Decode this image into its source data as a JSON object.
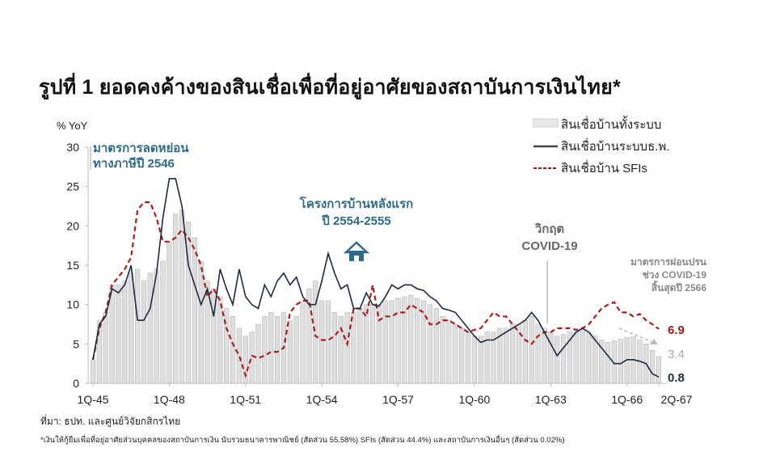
{
  "title": "รูปที่ 1 ยอดคงค้างของสินเชื่อเพื่อที่อยู่อาศัยของสถาบันการเงินไทย*",
  "source": "ที่มา: ธปท. และศูนย์วิจัยกสิกรไทย",
  "footnote": "*เงินให้กู้ยืมเพื่อที่อยู่อาศัยส่วนบุคคลของสถาบันการเงิน นับรวมธนาคารพาณิชย์ (สัดส่วน 55.58%) SFIs (สัดส่วน 44.4%) และสถาบันการเงินอื่นๆ (สัดส่วน 0.02%)",
  "chart_data": {
    "type": "bar+line",
    "ylabel": "% YoY",
    "ylim": [
      0,
      30
    ],
    "yticks": [
      "0",
      "5",
      "10",
      "15",
      "20",
      "25",
      "30"
    ],
    "xtick_labels": [
      "1Q-45",
      "1Q-48",
      "1Q-51",
      "1Q-54",
      "1Q-57",
      "1Q-60",
      "1Q-63",
      "1Q-66",
      "2Q-67"
    ],
    "x_start": "1Q-45",
    "x_end": "2Q-67",
    "legend_position": "top-right",
    "series": [
      {
        "name": "สินเชื่อบ้านทั้งระบบ",
        "kind": "bar",
        "color": "#dedede",
        "values": [
          3,
          8,
          9,
          12.5,
          12.5,
          13,
          14,
          14.5,
          13,
          14,
          14.5,
          15.5,
          18,
          21.5,
          22,
          20.5,
          18.5,
          15.5,
          13,
          12,
          11,
          9.5,
          8.5,
          7,
          6,
          6.5,
          7.5,
          8.5,
          9,
          8.5,
          9,
          8,
          8.5,
          10.5,
          12,
          13,
          10.5,
          10.5,
          9,
          8.5,
          9,
          9,
          9.5,
          10,
          10,
          10,
          10.5,
          10.5,
          10.8,
          11,
          11.2,
          10.8,
          10.5,
          10,
          9.5,
          8.5,
          8,
          7.5,
          7,
          6.5,
          6,
          6,
          6.5,
          6.5,
          7,
          7,
          7.5,
          7.5,
          8,
          8.5,
          7.5,
          7,
          6.5,
          6,
          6.2,
          6.5,
          6.8,
          6.8,
          6.5,
          6,
          5.5,
          5.2,
          5.4,
          5.6,
          5.8,
          5.9,
          5.5,
          5,
          4.2,
          3.4
        ]
      },
      {
        "name": "สินเชื่อบ้านระบบธ.พ.",
        "kind": "line",
        "color": "#1c2b40",
        "values": [
          3,
          7.5,
          8.5,
          12,
          11.5,
          12.5,
          15,
          8,
          8,
          9.5,
          14,
          21,
          26,
          26,
          22.5,
          15,
          12.5,
          10,
          12,
          8.5,
          14.5,
          12,
          10,
          14.5,
          11,
          10,
          9.5,
          12.5,
          11,
          13,
          14,
          12.5,
          13.5,
          11,
          10,
          10,
          13,
          16.5,
          14,
          12,
          12.5,
          9.5,
          9.5,
          11.5,
          10,
          9.8,
          11,
          12.5,
          12,
          12.5,
          12.5,
          12,
          11.8,
          11,
          10.5,
          9.5,
          9.3,
          9,
          8,
          7,
          6,
          5.2,
          5.5,
          5.5,
          6,
          6.5,
          7,
          7.5,
          8,
          9,
          8,
          6.5,
          5,
          3.5,
          4.5,
          5.5,
          6.5,
          7,
          6.5,
          5.5,
          4.5,
          3.5,
          2.5,
          2.5,
          3,
          3,
          2.8,
          2.5,
          1.2,
          0.8
        ]
      },
      {
        "name": "สินเชื่อบ้าน SFIs",
        "kind": "dashed-line",
        "color": "#b01c1c",
        "values": [
          3,
          7,
          9,
          12.5,
          13.5,
          14.5,
          16,
          22,
          23,
          23,
          21,
          18,
          18,
          18.5,
          19.5,
          18.5,
          17,
          15,
          11,
          12,
          10.5,
          7,
          5,
          3.5,
          1,
          3.5,
          3.2,
          3.5,
          4,
          4,
          4.5,
          9,
          10,
          10.5,
          10.5,
          6,
          5.5,
          5.5,
          6,
          7,
          5,
          9.5,
          9.5,
          8.5,
          12.5,
          8,
          8.5,
          8.5,
          9,
          9,
          10,
          9.5,
          9,
          7.5,
          7.5,
          8,
          8,
          7.5,
          7,
          6.5,
          6.8,
          7,
          8,
          9,
          8.5,
          8.5,
          7.5,
          6.5,
          5.5,
          5,
          6,
          6.5,
          6.5,
          7,
          7,
          7,
          6.8,
          7,
          7.5,
          8.5,
          9.5,
          10,
          10.3,
          9,
          9,
          8.5,
          8.8,
          8,
          7.5,
          6.9
        ]
      }
    ],
    "end_labels": [
      "6.9",
      "3.4",
      "0.8"
    ],
    "annotations": [
      {
        "text": [
          "มาตรการลดหย่อน",
          "ทางภาษีปี 2546"
        ],
        "color": "#2e6b8a"
      },
      {
        "text": [
          "โครงการบ้านหลังแรก",
          "ปี 2554-2555"
        ],
        "color": "#2e6b8a"
      },
      {
        "text": [
          "วิกฤต",
          "COVID-19"
        ],
        "color": "#666666"
      },
      {
        "text": [
          "มาตรการผ่อนปรน",
          "ช่วง COVID-19",
          "สิ้นสุดปี 2566"
        ],
        "color": "#8a8a8a"
      }
    ]
  }
}
